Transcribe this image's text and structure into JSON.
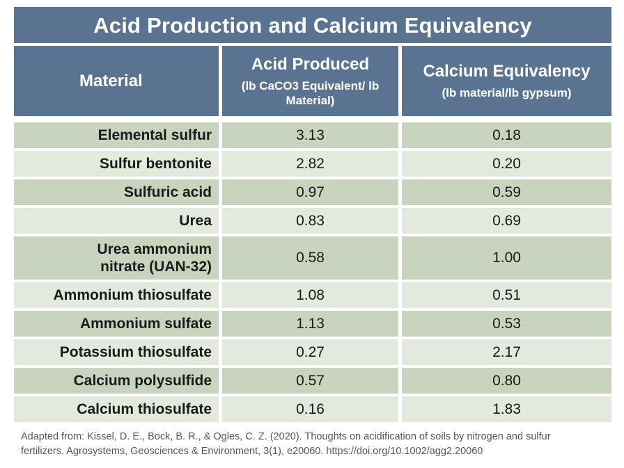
{
  "header": {
    "title": "Acid Production and Calcium Equivalency"
  },
  "table": {
    "columns": [
      {
        "title": "Material"
      },
      {
        "title": "Acid Produced",
        "unit": "(lb CaCO3 Equivalent/ lb Material)"
      },
      {
        "title": "Calcium Equivalency",
        "unit": "(lb material/lb gypsum)"
      }
    ],
    "rows": [
      [
        "Elemental sulfur",
        "3.13",
        "0.18"
      ],
      [
        "Sulfur bentonite",
        "2.82",
        "0.20"
      ],
      [
        "Sulfuric acid",
        "0.97",
        "0.59"
      ],
      [
        "Urea",
        "0.83",
        "0.69"
      ],
      [
        "Urea ammonium nitrate (UAN-32)",
        "0.58",
        "1.00"
      ],
      [
        "Ammonium thiosulfate",
        "1.08",
        "0.51"
      ],
      [
        "Ammonium sulfate",
        "1.13",
        "0.53"
      ],
      [
        "Potassium thiosulfate",
        "0.27",
        "2.17"
      ],
      [
        "Calcium polysulfide",
        "0.57",
        "0.80"
      ],
      [
        "Calcium thiosulfate",
        "0.16",
        "1.83"
      ]
    ]
  },
  "footer": {
    "source": "Adapted from: Kissel, D. E., Bock, B. R., & Ogles, C. Z. (2020). Thoughts on acidification of soils by nitrogen and sulfur fertilizers. Agrosystems, Geosciences & Environment, 3(1), e20060. https://doi.org/10.1002/agg2.20060"
  }
}
